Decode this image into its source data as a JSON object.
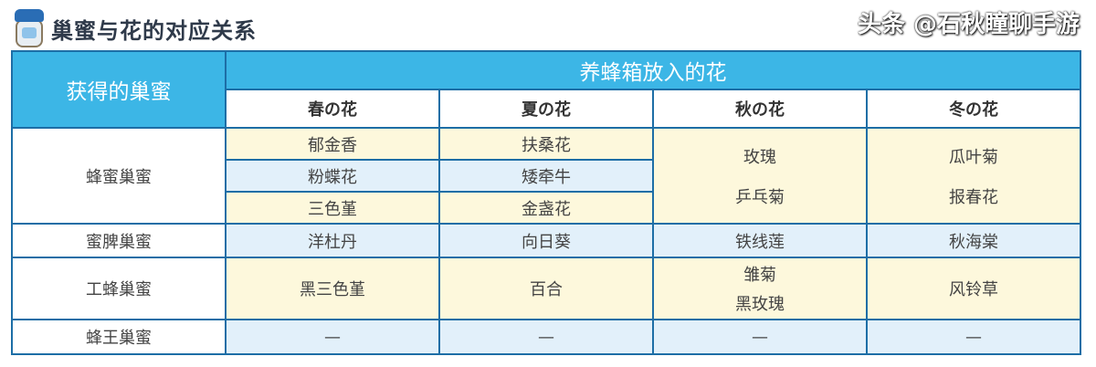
{
  "title": "巢蜜与花的对应关系",
  "header": {
    "left": "获得的巢蜜",
    "main": "养蜂箱放入的花",
    "seasons": [
      "春の花",
      "夏の花",
      "秋の花",
      "冬の花"
    ]
  },
  "rows": {
    "honey": {
      "label": "蜂蜜巢蜜",
      "spring": [
        "郁金香",
        "粉蝶花",
        "三色堇"
      ],
      "summer": [
        "扶桑花",
        "矮牵牛",
        "金盏花"
      ],
      "autumn": [
        "玫瑰",
        "乒乓菊"
      ],
      "winter": [
        "瓜叶菊",
        "报春花"
      ]
    },
    "comb": {
      "label": "蜜脾巢蜜",
      "spring": "洋杜丹",
      "summer": "向日葵",
      "autumn": "铁线莲",
      "winter": "秋海棠"
    },
    "worker": {
      "label": "工蜂巢蜜",
      "spring": "黑三色堇",
      "summer": "百合",
      "autumn": [
        "雏菊",
        "黑玫瑰"
      ],
      "winter": "风铃草"
    },
    "queen": {
      "label": "蜂王巢蜜",
      "spring": "—",
      "summer": "—",
      "autumn": "—",
      "winter": "—"
    }
  },
  "watermark": "头条 @石秋瞳聊手游",
  "colors": {
    "header": "#3cb6e6",
    "border": "#1d6ea6",
    "yellow": "#fdf8dc",
    "blue": "#e2f0fa"
  },
  "icon": "honey-jar-icon"
}
